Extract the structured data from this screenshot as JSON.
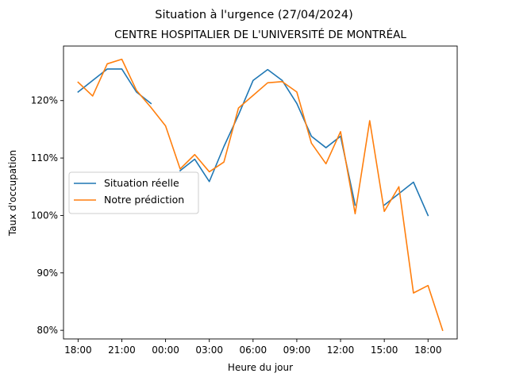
{
  "chart_data": {
    "type": "line",
    "suptitle": "Situation à l'urgence (27/04/2024)",
    "title": "CENTRE HOSPITALIER DE L'UNIVERSITÉ DE MONTRÉAL",
    "xlabel": "Heure du jour",
    "ylabel": "Taux d'occupation",
    "x_hours": [
      0,
      1,
      2,
      3,
      4,
      5,
      6,
      7,
      8,
      9,
      10,
      11,
      12,
      13,
      14,
      15,
      16,
      17,
      18,
      19,
      20,
      21,
      22,
      23,
      24,
      25
    ],
    "x_tick_hours": [
      0,
      3,
      6,
      9,
      12,
      15,
      18,
      21,
      24
    ],
    "x_tick_labels": [
      "18:00",
      "21:00",
      "00:00",
      "03:00",
      "06:00",
      "09:00",
      "12:00",
      "15:00",
      "18:00"
    ],
    "xlim": [
      -1,
      26
    ],
    "y_ticks": [
      80,
      90,
      100,
      110,
      120
    ],
    "y_tick_labels": [
      "80%",
      "90%",
      "100%",
      "110%",
      "120%"
    ],
    "ylim": [
      78.5,
      129.5
    ],
    "series": [
      {
        "name": "Situation réelle",
        "color": "#1f77b4",
        "segments": [
          [
            [
              0,
              121.5
            ],
            [
              1,
              123.5
            ],
            [
              2,
              125.5
            ],
            [
              3,
              125.5
            ],
            [
              4,
              121.5
            ],
            [
              5,
              119.5
            ]
          ],
          [
            [
              7,
              107.8
            ],
            [
              8,
              109.8
            ],
            [
              9,
              105.9
            ],
            [
              10,
              112
            ],
            [
              11,
              117.5
            ],
            [
              12,
              123.5
            ],
            [
              13,
              125.4
            ],
            [
              14,
              123.5
            ],
            [
              15,
              119.5
            ],
            [
              16,
              113.8
            ],
            [
              17,
              111.8
            ],
            [
              18,
              113.8
            ],
            [
              19,
              101.8
            ]
          ],
          [
            [
              21,
              101.8
            ],
            [
              22,
              103.8
            ],
            [
              23,
              105.8
            ],
            [
              24,
              100
            ]
          ]
        ]
      },
      {
        "name": "Notre prédiction",
        "color": "#ff7f0e",
        "segments": [
          [
            [
              0,
              123.2
            ],
            [
              1,
              120.8
            ],
            [
              2,
              126.4
            ],
            [
              3,
              127.2
            ],
            [
              4,
              121.8
            ],
            [
              5,
              118.8
            ],
            [
              6,
              115.6
            ],
            [
              7,
              108.1
            ],
            [
              8,
              110.6
            ],
            [
              9,
              107.6
            ],
            [
              10,
              109.3
            ],
            [
              11,
              118.7
            ],
            [
              12,
              120.9
            ],
            [
              13,
              123.1
            ],
            [
              14,
              123.3
            ],
            [
              15,
              121.5
            ],
            [
              16,
              112.6
            ],
            [
              17,
              109
            ],
            [
              18,
              114.6
            ],
            [
              19,
              100.3
            ],
            [
              20,
              116.5
            ],
            [
              21,
              100.7
            ],
            [
              22,
              105
            ],
            [
              23,
              86.5
            ],
            [
              24,
              87.8
            ],
            [
              25,
              80
            ]
          ]
        ]
      }
    ],
    "legend_position": "center-left"
  }
}
